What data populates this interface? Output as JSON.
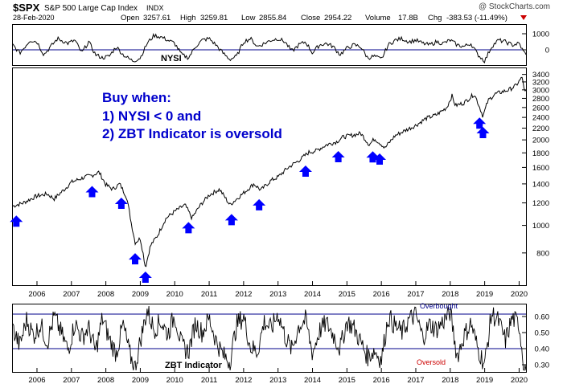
{
  "header": {
    "ticker": "$SPX",
    "name": "S&P 500 Large Cap Index",
    "exchange": "INDX",
    "date": "28-Feb-2020",
    "watermark": "@ StockCharts.com",
    "open_label": "Open",
    "open": "3257.61",
    "high_label": "High",
    "high": "3259.81",
    "low_label": "Low",
    "low": "2855.84",
    "close_label": "Close",
    "close": "2954.22",
    "volume_label": "Volume",
    "volume": "17.8B",
    "chg_label": "Chg",
    "chg": "-383.53 (-11.49%)",
    "chg_color": "#cc0000"
  },
  "annotation": {
    "title": "Buy when:",
    "line1": "1) NYSI < 0 and",
    "line2": "2) ZBT Indicator is oversold",
    "color": "#0000cc"
  },
  "colors": {
    "price_line": "#000000",
    "arrow": "#0000ff",
    "axis": "#000000",
    "threshold_line": "#00008b",
    "oversold_label": "#cc0000",
    "overbought_label": "#00008b"
  },
  "chart_data": [
    {
      "type": "line",
      "title": "NYSI",
      "ylabel": "",
      "y_ticks": [
        "1000",
        "0"
      ],
      "ylim": [
        -900,
        1500
      ],
      "reference_line": 0,
      "series": [
        {
          "name": "NYSI",
          "x": [
            2005.3,
            2005.5,
            2005.8,
            2006.0,
            2006.2,
            2006.4,
            2006.6,
            2006.9,
            2007.1,
            2007.3,
            2007.5,
            2007.7,
            2007.9,
            2008.1,
            2008.3,
            2008.5,
            2008.7,
            2008.8,
            2009.0,
            2009.2,
            2009.4,
            2009.6,
            2009.8,
            2010.0,
            2010.2,
            2010.4,
            2010.6,
            2010.8,
            2011.0,
            2011.2,
            2011.4,
            2011.6,
            2011.8,
            2012.0,
            2012.2,
            2012.4,
            2012.6,
            2012.8,
            2013.0,
            2013.2,
            2013.4,
            2013.6,
            2013.8,
            2014.0,
            2014.2,
            2014.4,
            2014.6,
            2014.8,
            2015.0,
            2015.2,
            2015.4,
            2015.6,
            2015.8,
            2016.0,
            2016.2,
            2016.4,
            2016.6,
            2016.8,
            2017.0,
            2017.2,
            2017.4,
            2017.6,
            2017.8,
            2018.0,
            2018.2,
            2018.4,
            2018.6,
            2018.8,
            2019.0,
            2019.2,
            2019.4,
            2019.6,
            2019.8,
            2020.0,
            2020.15
          ],
          "values": [
            300,
            -200,
            600,
            500,
            -300,
            200,
            700,
            400,
            600,
            -200,
            500,
            -300,
            -500,
            -400,
            200,
            -300,
            -600,
            -700,
            -500,
            400,
            900,
            800,
            600,
            400,
            -300,
            -500,
            200,
            600,
            700,
            300,
            -200,
            -600,
            -400,
            500,
            700,
            200,
            400,
            600,
            700,
            500,
            -100,
            300,
            500,
            -200,
            300,
            400,
            200,
            -300,
            100,
            300,
            200,
            -500,
            -400,
            -600,
            300,
            600,
            700,
            500,
            600,
            400,
            300,
            500,
            400,
            600,
            300,
            200,
            400,
            -300,
            -700,
            200,
            600,
            500,
            300,
            400,
            -200
          ]
        }
      ]
    },
    {
      "type": "line",
      "title": "$SPX S&P 500 Large Cap Index",
      "xlabel": "",
      "ylabel": "",
      "y_scale": "log",
      "ylim": [
        620,
        3550
      ],
      "xlim": [
        2005.3,
        2020.2
      ],
      "x_ticks": [
        "2006",
        "2007",
        "2008",
        "2009",
        "2010",
        "2011",
        "2012",
        "2013",
        "2014",
        "2015",
        "2016",
        "2017",
        "2018",
        "2019",
        "2020"
      ],
      "y_ticks": [
        "800",
        "1000",
        "1200",
        "1400",
        "1600",
        "1800",
        "2000",
        "2200",
        "2400",
        "2600",
        "2800",
        "3000",
        "3200",
        "3400"
      ],
      "series": [
        {
          "name": "$SPX",
          "x": [
            2005.3,
            2005.6,
            2006.0,
            2006.3,
            2006.5,
            2006.8,
            2007.0,
            2007.4,
            2007.6,
            2007.8,
            2008.0,
            2008.2,
            2008.4,
            2008.6,
            2008.75,
            2008.85,
            2009.0,
            2009.15,
            2009.3,
            2009.5,
            2009.75,
            2010.0,
            2010.3,
            2010.5,
            2010.75,
            2011.0,
            2011.3,
            2011.6,
            2011.8,
            2012.0,
            2012.3,
            2012.5,
            2012.8,
            2013.0,
            2013.3,
            2013.6,
            2013.9,
            2014.1,
            2014.4,
            2014.7,
            2014.9,
            2015.2,
            2015.4,
            2015.65,
            2015.8,
            2016.0,
            2016.1,
            2016.4,
            2016.7,
            2017.0,
            2017.3,
            2017.6,
            2017.9,
            2018.05,
            2018.15,
            2018.4,
            2018.7,
            2018.95,
            2019.1,
            2019.3,
            2019.5,
            2019.7,
            2019.9,
            2020.1,
            2020.15
          ],
          "values": [
            1170,
            1200,
            1270,
            1290,
            1240,
            1340,
            1420,
            1480,
            1500,
            1540,
            1390,
            1340,
            1400,
            1260,
            1000,
            870,
            900,
            710,
            850,
            920,
            1060,
            1120,
            1180,
            1060,
            1180,
            1280,
            1340,
            1180,
            1240,
            1300,
            1400,
            1330,
            1440,
            1480,
            1600,
            1690,
            1810,
            1830,
            1920,
            1970,
            2050,
            2080,
            2110,
            1920,
            2020,
            1930,
            1870,
            2070,
            2160,
            2250,
            2380,
            2450,
            2600,
            2860,
            2640,
            2700,
            2900,
            2420,
            2750,
            2900,
            2950,
            3000,
            3100,
            3330,
            2950
          ]
        }
      ],
      "buy_signals": [
        2005.4,
        2007.6,
        2008.45,
        2008.85,
        2009.15,
        2010.4,
        2011.65,
        2012.45,
        2013.8,
        2014.75,
        2015.75,
        2015.95,
        2018.85,
        2018.95
      ]
    },
    {
      "type": "line",
      "title": "ZBT Indicator",
      "ylabel": "",
      "y_ticks": [
        "0.60",
        "0.50",
        "0.40",
        "0.30"
      ],
      "ylim": [
        0.26,
        0.67
      ],
      "overbought": 0.615,
      "oversold": 0.4,
      "overbought_label": "Overbought",
      "oversold_label": "Oversold",
      "series": [
        {
          "name": "ZBT",
          "x": [
            2005.3,
            2005.5,
            2005.7,
            2005.9,
            2006.1,
            2006.3,
            2006.5,
            2006.7,
            2006.9,
            2007.1,
            2007.3,
            2007.5,
            2007.7,
            2007.9,
            2008.1,
            2008.3,
            2008.5,
            2008.7,
            2008.85,
            2009.0,
            2009.2,
            2009.4,
            2009.6,
            2009.8,
            2010.0,
            2010.2,
            2010.4,
            2010.6,
            2010.8,
            2011.0,
            2011.2,
            2011.4,
            2011.6,
            2011.8,
            2012.0,
            2012.2,
            2012.4,
            2012.6,
            2012.8,
            2013.0,
            2013.2,
            2013.4,
            2013.6,
            2013.8,
            2014.0,
            2014.2,
            2014.4,
            2014.6,
            2014.8,
            2015.0,
            2015.2,
            2015.4,
            2015.6,
            2015.8,
            2016.0,
            2016.2,
            2016.4,
            2016.6,
            2016.8,
            2017.0,
            2017.2,
            2017.4,
            2017.6,
            2017.8,
            2018.0,
            2018.2,
            2018.4,
            2018.6,
            2018.8,
            2019.0,
            2019.2,
            2019.4,
            2019.6,
            2019.8,
            2020.0,
            2020.15
          ],
          "values": [
            0.52,
            0.42,
            0.58,
            0.48,
            0.55,
            0.44,
            0.6,
            0.5,
            0.39,
            0.56,
            0.47,
            0.53,
            0.38,
            0.59,
            0.46,
            0.37,
            0.55,
            0.36,
            0.28,
            0.45,
            0.64,
            0.52,
            0.57,
            0.49,
            0.61,
            0.42,
            0.38,
            0.56,
            0.5,
            0.59,
            0.45,
            0.36,
            0.32,
            0.55,
            0.6,
            0.41,
            0.38,
            0.57,
            0.52,
            0.62,
            0.48,
            0.39,
            0.54,
            0.58,
            0.37,
            0.51,
            0.56,
            0.49,
            0.4,
            0.57,
            0.53,
            0.44,
            0.35,
            0.39,
            0.33,
            0.6,
            0.54,
            0.5,
            0.58,
            0.61,
            0.47,
            0.55,
            0.52,
            0.57,
            0.63,
            0.35,
            0.48,
            0.56,
            0.4,
            0.3,
            0.62,
            0.57,
            0.45,
            0.59,
            0.55,
            0.28
          ]
        }
      ]
    }
  ]
}
